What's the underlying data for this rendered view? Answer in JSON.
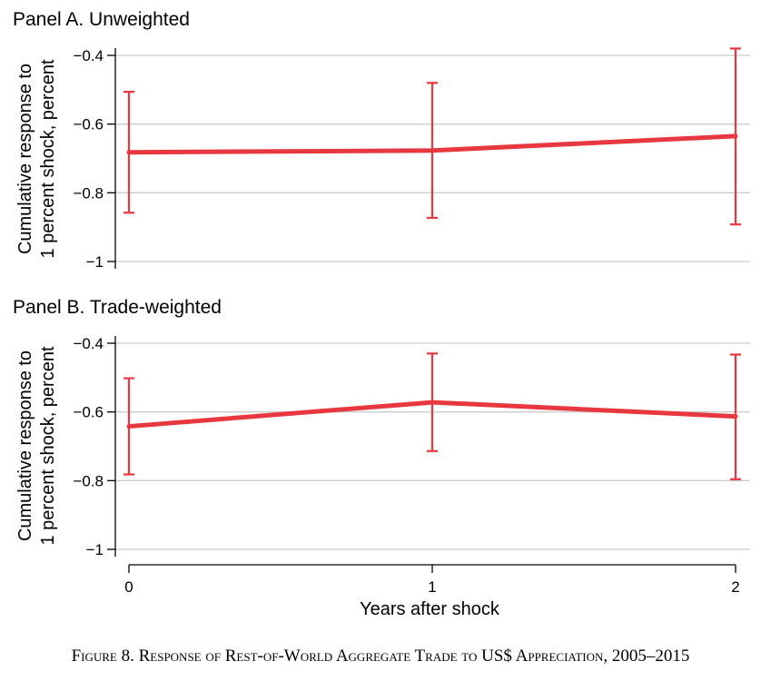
{
  "chart_data": [
    {
      "type": "line",
      "title": "Panel A. Unweighted",
      "ylabel": [
        "Cumulative response to",
        "1 percent shock, percent"
      ],
      "x": [
        0,
        1,
        2
      ],
      "ylim": [
        -1,
        -0.4
      ],
      "yticks": [
        -0.4,
        -0.6,
        -0.8,
        -1
      ],
      "ytick_labels": [
        "−0.4",
        "−0.6",
        "−0.8",
        "−1"
      ],
      "grid": true,
      "series": [
        {
          "values": [
            -0.682,
            -0.677,
            -0.635
          ],
          "ci_lower": [
            -0.858,
            -0.873,
            -0.892
          ],
          "ci_upper": [
            -0.506,
            -0.48,
            -0.38
          ]
        }
      ]
    },
    {
      "type": "line",
      "title": "Panel B. Trade-weighted",
      "ylabel": [
        "Cumulative response to",
        "1 percent shock, percent"
      ],
      "xlabel": "Years after shock",
      "x": [
        0,
        1,
        2
      ],
      "xtick_labels": [
        "0",
        "1",
        "2"
      ],
      "ylim": [
        -1,
        -0.4
      ],
      "yticks": [
        -0.4,
        -0.6,
        -0.8,
        -1
      ],
      "ytick_labels": [
        "−0.4",
        "−0.6",
        "−0.8",
        "−1"
      ],
      "grid": true,
      "series": [
        {
          "values": [
            -0.642,
            -0.572,
            -0.613
          ],
          "ci_lower": [
            -0.782,
            -0.714,
            -0.796
          ],
          "ci_upper": [
            -0.502,
            -0.43,
            -0.433
          ]
        }
      ]
    }
  ],
  "colors": {
    "series": "#e8383f",
    "grid": "#cccccc",
    "axis": "#000000"
  },
  "caption": "Figure 8. Response of Rest-of-World Aggregate Trade to US$ Appreciation, 2005–2015"
}
